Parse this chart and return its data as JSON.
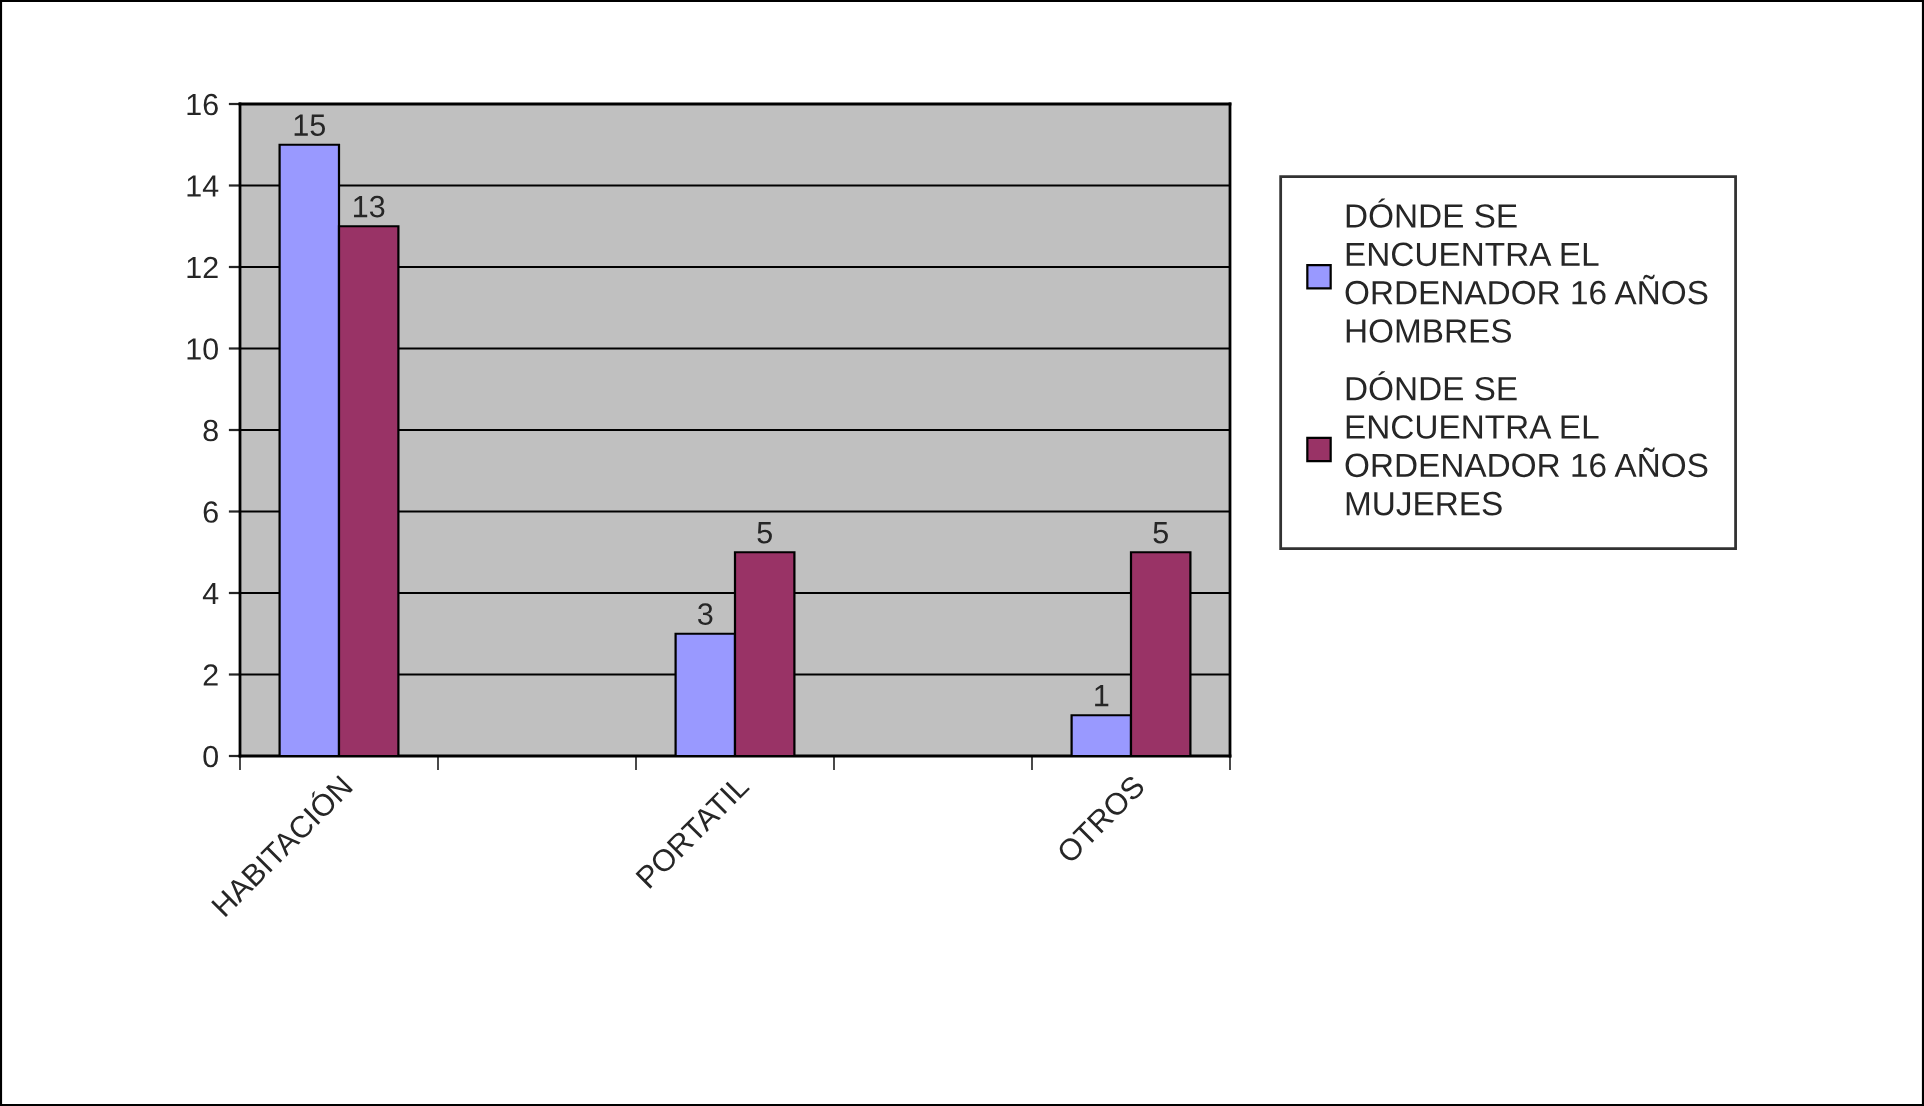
{
  "chart_data": {
    "type": "bar",
    "categories": [
      "HABITACIÓN",
      null,
      "PORTATIL",
      null,
      "OTROS"
    ],
    "series": [
      {
        "name": "DÓNDE SE ENCUENTRA EL ORDENADOR 16 AÑOS HOMBRES",
        "color": "#9999ff",
        "values": [
          15,
          null,
          3,
          null,
          1
        ]
      },
      {
        "name": "DÓNDE SE ENCUENTRA EL ORDENADOR 16 AÑOS MUJERES",
        "color": "#993366",
        "values": [
          13,
          null,
          5,
          null,
          5
        ]
      }
    ],
    "ylim": [
      0,
      16
    ],
    "yticks": [
      0,
      2,
      4,
      6,
      8,
      10,
      12,
      14,
      16
    ],
    "grid": "y",
    "legend": "right",
    "data_labels": true
  }
}
